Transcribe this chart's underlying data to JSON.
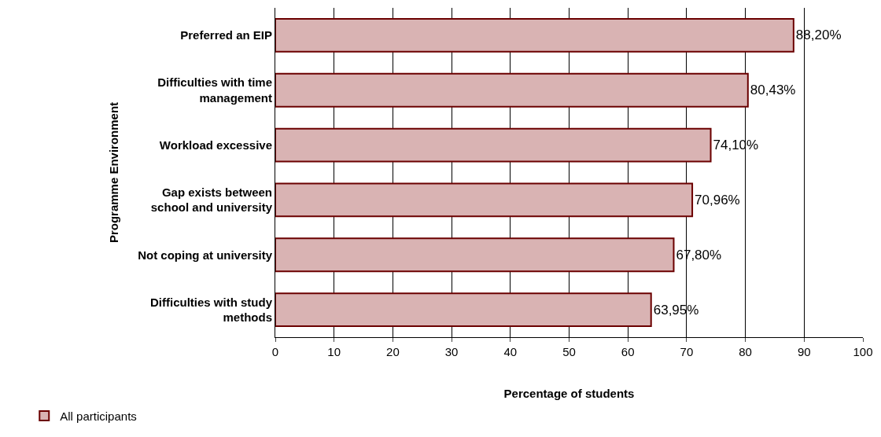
{
  "chart_data": {
    "type": "bar",
    "orientation": "horizontal",
    "xlabel": "Percentage of students",
    "ylabel": "Programme Environment",
    "categories": [
      "Preferred an EIP",
      "Difficulties with time management",
      "Workload excessive",
      "Gap exists between school and university",
      "Not coping at university",
      "Difficulties with study methods"
    ],
    "series": [
      {
        "name": "All participants",
        "color": "#d9b3b3",
        "values": [
          88.2,
          80.43,
          74.1,
          70.96,
          67.8,
          63.95
        ],
        "value_labels": [
          "88,20%",
          "80,43%",
          "74,10%",
          "70,96%",
          "67,80%",
          "63,95%"
        ]
      }
    ],
    "xlim": [
      0,
      100
    ],
    "xticks": [
      0,
      10,
      20,
      30,
      40,
      50,
      60,
      70,
      80,
      90,
      100
    ],
    "grid": "x",
    "legend": "bottom left"
  }
}
